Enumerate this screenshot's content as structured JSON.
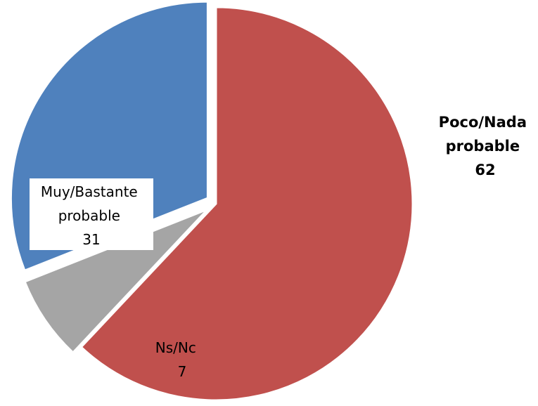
{
  "chart_data": {
    "type": "pie",
    "title": "",
    "slices": [
      {
        "label": "Poco/Nada probable",
        "label_lines": [
          "Poco/Nada",
          "probable"
        ],
        "value": 62,
        "value_text": "62",
        "color": "#C0504D",
        "exploded": false,
        "label_placement": "outside-right",
        "label_bold": true
      },
      {
        "label": "Ns/Nc",
        "label_lines": [
          "Ns/Nc"
        ],
        "value": 7,
        "value_text": "7",
        "color": "#A5A5A5",
        "exploded": true,
        "label_placement": "inside",
        "label_bold": false
      },
      {
        "label": "Muy/Bastante probable",
        "label_lines": [
          "Muy/Bastante",
          "probable"
        ],
        "value": 31,
        "value_text": "31",
        "color": "#4F81BD",
        "exploded": true,
        "label_placement": "inside-boxed",
        "label_bold": false
      }
    ],
    "start_angle": "12 o'clock, clockwise",
    "legend": "none"
  }
}
